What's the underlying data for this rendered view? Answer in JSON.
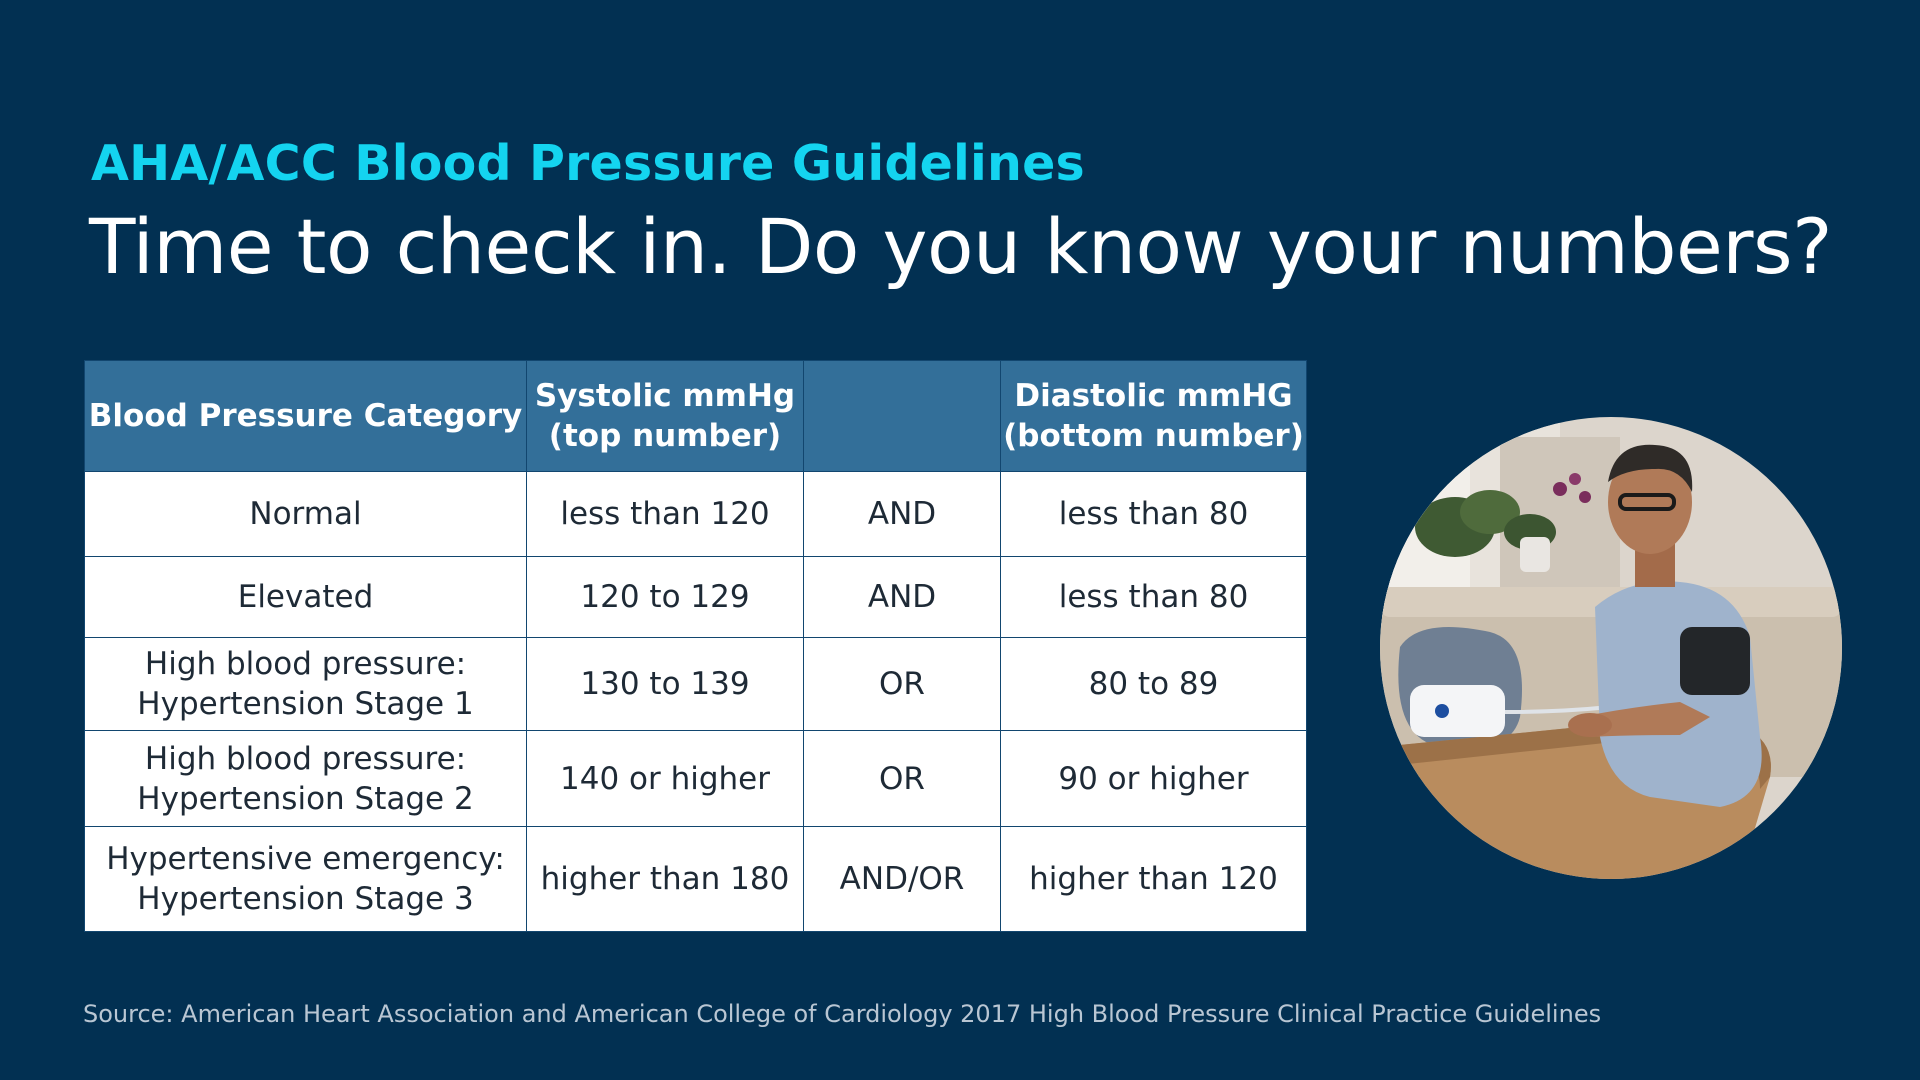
{
  "eyebrow": "AHA/ACC Blood Pressure Guidelines",
  "headline": "Time to check in. Do you know your numbers?",
  "table": {
    "headers": {
      "category": "Blood Pressure Category",
      "systolic_line1": "Systolic mmHg",
      "systolic_line2": "(top number)",
      "connector": "",
      "diastolic_line1": "Diastolic mmHG",
      "diastolic_line2": "(bottom number)"
    },
    "rows": [
      {
        "category_line1": "Normal",
        "category_line2": "",
        "systolic": "less than 120",
        "connector": "AND",
        "diastolic": "less than 80"
      },
      {
        "category_line1": "Elevated",
        "category_line2": "",
        "systolic": "120 to 129",
        "connector": "AND",
        "diastolic": "less than 80"
      },
      {
        "category_line1": "High blood pressure:",
        "category_line2": "Hypertension Stage 1",
        "systolic": "130 to 139",
        "connector": "OR",
        "diastolic": "80 to 89"
      },
      {
        "category_line1": "High blood pressure:",
        "category_line2": "Hypertension Stage 2",
        "systolic": "140 or higher",
        "connector": "OR",
        "diastolic": "90 or higher"
      },
      {
        "category_line1": "Hypertensive emergency:",
        "category_line2": "Hypertension Stage 3",
        "systolic": "higher than 180",
        "connector": "AND/OR",
        "diastolic": "higher than 120"
      }
    ]
  },
  "source": "Source: American Heart Association and American College of Cardiology 2017 High Blood Pressure Clinical Practice Guidelines",
  "colors": {
    "background": "#023052",
    "accent": "#14d4f0",
    "table_header": "#336f99",
    "table_cell": "#ffffff"
  },
  "photo": {
    "icon": "man-checking-blood-pressure-photo"
  }
}
